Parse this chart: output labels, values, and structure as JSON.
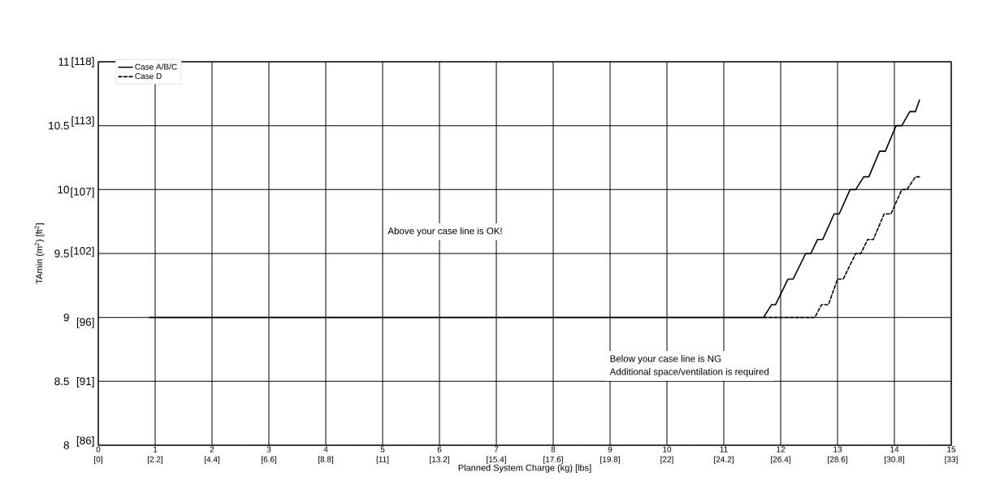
{
  "chart_data": {
    "type": "line",
    "xlabel": "Planned System Charge (kg) [lbs]",
    "ylabel": "TAmin (m$^{2}$) [ft$^{2}$]",
    "xlim": [
      0,
      15
    ],
    "ylim": [
      8,
      11
    ],
    "xticks": [
      0,
      1,
      2,
      3,
      4,
      5,
      6,
      7,
      8,
      9,
      10,
      11,
      12,
      13,
      14,
      15
    ],
    "yticks": [
      8,
      8.5,
      9,
      9.5,
      10,
      10.5,
      11
    ],
    "x2lim": [
      0,
      33
    ],
    "x2ticks": [
      {
        "value": 0,
        "label": "[0]"
      },
      {
        "value": 2.2,
        "label": "[2.2]"
      },
      {
        "value": 4.4,
        "label": "[4.4]"
      },
      {
        "value": 6.6,
        "label": "[6.6]"
      },
      {
        "value": 8.8,
        "label": "[8.8]"
      },
      {
        "value": 11,
        "label": "[11]"
      },
      {
        "value": 13.2,
        "label": "[13.2]"
      },
      {
        "value": 15.4,
        "label": "[15.4]"
      },
      {
        "value": 17.6,
        "label": "[17.6]"
      },
      {
        "value": 19.8,
        "label": "[19.8]"
      },
      {
        "value": 22,
        "label": "[22]"
      },
      {
        "value": 24.2,
        "label": "[24.2]"
      },
      {
        "value": 26.4,
        "label": "[26.4]"
      },
      {
        "value": 28.6,
        "label": "[28.6]"
      },
      {
        "value": 30.8,
        "label": "[30.8]"
      },
      {
        "value": 33,
        "label": "[33]"
      }
    ],
    "y2lim": [
      85.68,
      118.04
    ],
    "y2ticks": [
      {
        "value": 86,
        "label": "[86]"
      },
      {
        "value": 91,
        "label": "[91]"
      },
      {
        "value": 96,
        "label": "[96]"
      },
      {
        "value": 102,
        "label": "[102]"
      },
      {
        "value": 107,
        "label": "[107]"
      },
      {
        "value": 113,
        "label": "[113]"
      },
      {
        "value": 118,
        "label": "[118]"
      }
    ],
    "grid": true,
    "legend": "top left",
    "series": [
      {
        "name": "Case A/B/C",
        "color": "#000000",
        "line_style": "solid",
        "x": [
          0.9,
          11.65,
          11.7,
          11.84,
          11.91,
          12.13,
          12.22,
          12.44,
          12.53,
          12.65,
          12.74,
          12.94,
          13.03,
          13.22,
          13.32,
          13.46,
          13.55,
          13.74,
          13.84,
          14.03,
          14.13,
          14.27,
          14.37,
          14.44
        ],
        "values": [
          9,
          9,
          9,
          9.1,
          9.1,
          9.3,
          9.3,
          9.5,
          9.5,
          9.61,
          9.61,
          9.81,
          9.81,
          10.0,
          10.0,
          10.1,
          10.1,
          10.3,
          10.3,
          10.5,
          10.5,
          10.61,
          10.61,
          10.7
        ]
      },
      {
        "name": "Case D",
        "color": "#000000",
        "line_style": "dashed",
        "x": [
          11.7,
          12.6,
          12.72,
          12.84,
          13.0,
          13.1,
          13.32,
          13.41,
          13.53,
          13.63,
          13.82,
          13.94,
          14.13,
          14.22,
          14.37,
          14.44
        ],
        "values": [
          9,
          9,
          9.1,
          9.1,
          9.3,
          9.3,
          9.5,
          9.5,
          9.61,
          9.61,
          9.81,
          9.81,
          10.0,
          10.0,
          10.1,
          10.1
        ]
      }
    ],
    "annotations": [
      "Above your case line is OK!",
      "Below your case line is NG",
      "Additional space/ventilation is required"
    ]
  }
}
